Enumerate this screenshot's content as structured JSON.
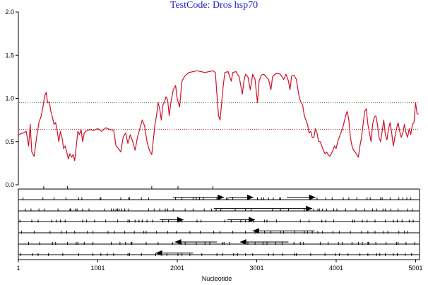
{
  "chart_data": {
    "type": "line",
    "title": "TestCode: Dros hsp70",
    "xlabel": "Nucleotide",
    "ylabel": "",
    "xlim": [
      1,
      5050
    ],
    "ylim": [
      0,
      2
    ],
    "x_ticks": [
      1,
      1001,
      2001,
      3001,
      4001,
      5001
    ],
    "y_ticks": [
      "0.0",
      "0.5",
      "1.0",
      "1.5",
      "2.0"
    ],
    "thresholds": [
      {
        "value": 0.95,
        "color": "#2e8b2e"
      },
      {
        "value": 0.64,
        "color": "#b03030"
      }
    ],
    "series": [
      {
        "color": "#d0102a",
        "points": [
          [
            1,
            0.58
          ],
          [
            60,
            0.6
          ],
          [
            100,
            0.62
          ],
          [
            130,
            0.45
          ],
          [
            150,
            0.7
          ],
          [
            170,
            0.38
          ],
          [
            200,
            0.33
          ],
          [
            230,
            0.55
          ],
          [
            260,
            0.72
          ],
          [
            290,
            0.8
          ],
          [
            310,
            0.9
          ],
          [
            330,
            1.02
          ],
          [
            350,
            1.07
          ],
          [
            370,
            0.95
          ],
          [
            390,
            0.96
          ],
          [
            410,
            0.85
          ],
          [
            430,
            0.78
          ],
          [
            450,
            0.7
          ],
          [
            470,
            0.72
          ],
          [
            490,
            0.62
          ],
          [
            510,
            0.5
          ],
          [
            530,
            0.62
          ],
          [
            550,
            0.55
          ],
          [
            570,
            0.42
          ],
          [
            590,
            0.45
          ],
          [
            610,
            0.38
          ],
          [
            630,
            0.3
          ],
          [
            650,
            0.36
          ],
          [
            670,
            0.32
          ],
          [
            690,
            0.35
          ],
          [
            710,
            0.28
          ],
          [
            730,
            0.45
          ],
          [
            750,
            0.62
          ],
          [
            770,
            0.58
          ],
          [
            790,
            0.64
          ],
          [
            810,
            0.5
          ],
          [
            830,
            0.6
          ],
          [
            850,
            0.62
          ],
          [
            900,
            0.64
          ],
          [
            950,
            0.63
          ],
          [
            1000,
            0.65
          ],
          [
            1050,
            0.62
          ],
          [
            1100,
            0.66
          ],
          [
            1150,
            0.64
          ],
          [
            1200,
            0.63
          ],
          [
            1230,
            0.45
          ],
          [
            1260,
            0.42
          ],
          [
            1290,
            0.38
          ],
          [
            1320,
            0.55
          ],
          [
            1350,
            0.6
          ],
          [
            1380,
            0.48
          ],
          [
            1410,
            0.58
          ],
          [
            1440,
            0.5
          ],
          [
            1470,
            0.4
          ],
          [
            1500,
            0.55
          ],
          [
            1530,
            0.65
          ],
          [
            1560,
            0.75
          ],
          [
            1590,
            0.68
          ],
          [
            1620,
            0.5
          ],
          [
            1650,
            0.4
          ],
          [
            1680,
            0.35
          ],
          [
            1700,
            0.52
          ],
          [
            1720,
            0.7
          ],
          [
            1740,
            0.8
          ],
          [
            1760,
            0.95
          ],
          [
            1780,
            0.88
          ],
          [
            1800,
            0.75
          ],
          [
            1820,
            0.92
          ],
          [
            1840,
            0.96
          ],
          [
            1860,
            1.02
          ],
          [
            1880,
            0.98
          ],
          [
            1900,
            0.8
          ],
          [
            1920,
            0.95
          ],
          [
            1950,
            1.1
          ],
          [
            1980,
            1.15
          ],
          [
            2000,
            1.0
          ],
          [
            2030,
            0.9
          ],
          [
            2060,
            1.2
          ],
          [
            2090,
            1.25
          ],
          [
            2120,
            1.28
          ],
          [
            2150,
            1.3
          ],
          [
            2200,
            1.31
          ],
          [
            2250,
            1.32
          ],
          [
            2300,
            1.31
          ],
          [
            2350,
            1.3
          ],
          [
            2400,
            1.31
          ],
          [
            2450,
            1.32
          ],
          [
            2480,
            1.3
          ],
          [
            2500,
            1.05
          ],
          [
            2520,
            0.8
          ],
          [
            2540,
            0.75
          ],
          [
            2560,
            0.95
          ],
          [
            2580,
            1.15
          ],
          [
            2600,
            1.3
          ],
          [
            2640,
            1.31
          ],
          [
            2680,
            1.2
          ],
          [
            2700,
            1.3
          ],
          [
            2740,
            1.31
          ],
          [
            2780,
            1.25
          ],
          [
            2800,
            1.15
          ],
          [
            2820,
            1.05
          ],
          [
            2840,
            1.2
          ],
          [
            2860,
            1.28
          ],
          [
            2890,
            1.25
          ],
          [
            2920,
            1.1
          ],
          [
            2950,
            1.28
          ],
          [
            2980,
            1.22
          ],
          [
            3010,
            0.95
          ],
          [
            3030,
            1.2
          ],
          [
            3060,
            1.27
          ],
          [
            3090,
            1.28
          ],
          [
            3120,
            1.25
          ],
          [
            3150,
            1.22
          ],
          [
            3180,
            1.1
          ],
          [
            3200,
            1.25
          ],
          [
            3230,
            1.28
          ],
          [
            3260,
            1.29
          ],
          [
            3300,
            1.28
          ],
          [
            3340,
            1.22
          ],
          [
            3370,
            1.28
          ],
          [
            3400,
            1.2
          ],
          [
            3420,
            1.1
          ],
          [
            3440,
            1.26
          ],
          [
            3470,
            1.27
          ],
          [
            3500,
            1.22
          ],
          [
            3520,
            1.1
          ],
          [
            3540,
            1.0
          ],
          [
            3560,
            0.95
          ],
          [
            3580,
            0.92
          ],
          [
            3600,
            0.8
          ],
          [
            3620,
            0.75
          ],
          [
            3640,
            0.7
          ],
          [
            3660,
            0.6
          ],
          [
            3680,
            0.62
          ],
          [
            3700,
            0.55
          ],
          [
            3720,
            0.55
          ],
          [
            3740,
            0.65
          ],
          [
            3760,
            0.6
          ],
          [
            3780,
            0.5
          ],
          [
            3800,
            0.5
          ],
          [
            3820,
            0.45
          ],
          [
            3840,
            0.4
          ],
          [
            3860,
            0.36
          ],
          [
            3880,
            0.38
          ],
          [
            3900,
            0.35
          ],
          [
            3920,
            0.33
          ],
          [
            3940,
            0.36
          ],
          [
            3960,
            0.4
          ],
          [
            3980,
            0.45
          ],
          [
            4000,
            0.42
          ],
          [
            4020,
            0.5
          ],
          [
            4040,
            0.55
          ],
          [
            4060,
            0.6
          ],
          [
            4080,
            0.65
          ],
          [
            4100,
            0.72
          ],
          [
            4120,
            0.8
          ],
          [
            4140,
            0.85
          ],
          [
            4160,
            0.75
          ],
          [
            4180,
            0.55
          ],
          [
            4200,
            0.45
          ],
          [
            4220,
            0.4
          ],
          [
            4240,
            0.38
          ],
          [
            4260,
            0.35
          ],
          [
            4280,
            0.32
          ],
          [
            4300,
            0.45
          ],
          [
            4320,
            0.55
          ],
          [
            4340,
            0.7
          ],
          [
            4360,
            0.85
          ],
          [
            4380,
            0.88
          ],
          [
            4400,
            0.7
          ],
          [
            4420,
            0.6
          ],
          [
            4440,
            0.5
          ],
          [
            4460,
            0.7
          ],
          [
            4480,
            0.78
          ],
          [
            4500,
            0.8
          ],
          [
            4520,
            0.7
          ],
          [
            4540,
            0.55
          ],
          [
            4560,
            0.5
          ],
          [
            4580,
            0.62
          ],
          [
            4600,
            0.75
          ],
          [
            4620,
            0.58
          ],
          [
            4640,
            0.52
          ],
          [
            4660,
            0.65
          ],
          [
            4680,
            0.72
          ],
          [
            4700,
            0.6
          ],
          [
            4720,
            0.45
          ],
          [
            4740,
            0.55
          ],
          [
            4760,
            0.65
          ],
          [
            4780,
            0.72
          ],
          [
            4800,
            0.62
          ],
          [
            4820,
            0.55
          ],
          [
            4840,
            0.6
          ],
          [
            4860,
            0.7
          ],
          [
            4880,
            0.6
          ],
          [
            4900,
            0.55
          ],
          [
            4920,
            0.65
          ],
          [
            4940,
            0.58
          ],
          [
            4960,
            0.7
          ],
          [
            4980,
            0.72
          ],
          [
            5000,
            0.95
          ],
          [
            5020,
            0.82
          ],
          [
            5040,
            0.82
          ]
        ]
      }
    ],
    "track_markers": [
      {
        "track": 0,
        "positions": [
          320,
          620,
          1680,
          2010,
          2450
        ]
      },
      {
        "track": 1,
        "positions": [
          60,
          310,
          450,
          600,
          760,
          800,
          1030,
          1040,
          1290,
          1390,
          1400,
          1550,
          1640,
          1980,
          2060,
          2200,
          2240,
          2280,
          2330,
          2500,
          2620,
          2640,
          2700,
          3010,
          3060,
          3090,
          3150,
          3210,
          3290,
          3300,
          3680,
          3760,
          3870,
          3950,
          4090,
          4160,
          4260,
          4390,
          4430,
          4560,
          4580,
          4680,
          4790,
          4840,
          4890,
          4940
        ]
      },
      {
        "track": 2,
        "positions": [
          90,
          160,
          260,
          330,
          500,
          650,
          660,
          720,
          740,
          810,
          890,
          1090,
          1170,
          1200,
          1230,
          1250,
          1270,
          1300,
          1340,
          1390,
          1640,
          1710,
          1780,
          1850,
          1880,
          1950,
          2100,
          2200,
          2340,
          2430,
          2490,
          2550,
          2730,
          2860,
          2930,
          3200,
          3300,
          3400,
          3600,
          3720,
          3770,
          3790,
          3830,
          3880,
          3970,
          4010,
          4120,
          4250,
          4360,
          4460,
          4510,
          4590,
          4620,
          4690,
          4780,
          4900,
          4960
        ]
      },
      {
        "track": 3,
        "positions": [
          20,
          170,
          250,
          420,
          480,
          530,
          590,
          810,
          860,
          960,
          1100,
          1250,
          1380,
          1400,
          1470,
          1520,
          1560,
          1620,
          1690,
          1820,
          1890,
          2010,
          2060,
          2250,
          2300,
          2600,
          2680,
          2800,
          2860,
          2960,
          3100,
          3130,
          3250,
          3550,
          3660,
          3820,
          3870,
          3970,
          4210,
          4230,
          4330,
          4390,
          4490,
          4620,
          4720,
          4770,
          4830,
          4920,
          4970
        ]
      },
      {
        "track": 4,
        "positions": [
          40,
          200,
          400,
          540,
          610,
          710,
          870,
          940,
          1130,
          1210,
          1340,
          1460,
          1580,
          1610,
          1740,
          1880,
          1990,
          2160,
          2290,
          2460,
          2540,
          2700,
          2860,
          2980,
          3100,
          3180,
          3300,
          3340,
          3480,
          3600,
          3640,
          3700,
          3770,
          3830,
          3960,
          4040,
          4180,
          4320,
          4400,
          4490,
          4600,
          4650,
          4790,
          4860,
          4900
        ]
      },
      {
        "track": 5,
        "positions": [
          130,
          270,
          430,
          470,
          620,
          730,
          750,
          830,
          940,
          1170,
          1280,
          1350,
          1420,
          1430,
          1610,
          1760,
          1940,
          2050,
          2100,
          2240,
          2350,
          2410,
          2570,
          2590,
          2660,
          2890,
          2980,
          3080,
          3130,
          3240,
          3320,
          3470,
          3550,
          3590,
          3800,
          3900,
          4030,
          4080,
          4200,
          4280,
          4330,
          4400,
          4410,
          4500,
          4630,
          4760,
          4780,
          4880,
          4990
        ]
      },
      {
        "track": 6,
        "positions": [
          30,
          180,
          250,
          380,
          560,
          760,
          940,
          1040,
          1120,
          1200,
          1380,
          1400,
          1550,
          1730,
          1870,
          2010,
          2060,
          2160,
          2310,
          2500,
          2570,
          2710,
          2760,
          2860,
          2950,
          3150,
          3210,
          3330,
          3480,
          3500,
          3680,
          3860,
          3990,
          4040,
          4150,
          4300,
          4400,
          4510,
          4550,
          4620,
          4720,
          4770,
          4870,
          4950
        ]
      }
    ],
    "arrows": [
      {
        "track": 1,
        "from": 1950,
        "to": 2590,
        "direction": "right"
      },
      {
        "track": 1,
        "from": 2650,
        "to": 2960,
        "direction": "right"
      },
      {
        "track": 1,
        "from": 3380,
        "to": 3740,
        "direction": "right"
      },
      {
        "track": 2,
        "from": 2460,
        "to": 3700,
        "direction": "right"
      },
      {
        "track": 3,
        "from": 1780,
        "to": 2080,
        "direction": "right"
      },
      {
        "track": 3,
        "from": 2630,
        "to": 2980,
        "direction": "right"
      },
      {
        "track": 4,
        "from": 2950,
        "to": 3730,
        "direction": "left"
      },
      {
        "track": 5,
        "from": 1970,
        "to": 2500,
        "direction": "left"
      },
      {
        "track": 5,
        "from": 2790,
        "to": 3400,
        "direction": "left"
      },
      {
        "track": 6,
        "from": 1730,
        "to": 2200,
        "direction": "left"
      }
    ]
  }
}
